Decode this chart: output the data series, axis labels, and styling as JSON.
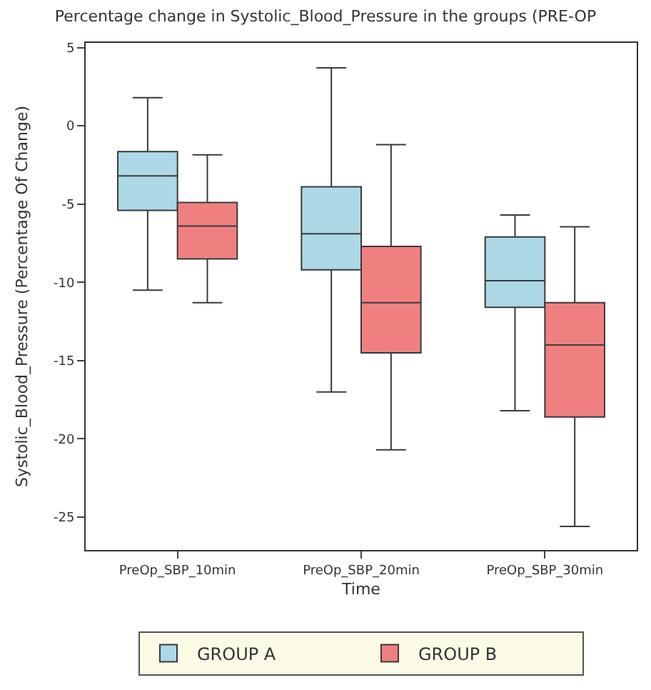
{
  "chart_data": {
    "type": "box",
    "title": "Percentage change in Systolic_Blood_Pressure in the groups (PRE-OP",
    "xlabel": "Time",
    "ylabel": "Systolic_Blood_Pressure (Percentage Of Change)",
    "categories": [
      "PreOp_SBP_10min",
      "PreOp_SBP_20min",
      "PreOp_SBP_30min"
    ],
    "series": [
      {
        "name": "GROUP A",
        "color": "#add8e6",
        "boxes": [
          {
            "low": -10.5,
            "q1": -5.4,
            "median": -3.2,
            "q3": -1.65,
            "high": 1.8
          },
          {
            "low": -17.0,
            "q1": -9.2,
            "median": -6.9,
            "q3": -3.9,
            "high": 3.7
          },
          {
            "low": -18.2,
            "q1": -11.6,
            "median": -9.9,
            "q3": -7.1,
            "high": -5.7
          }
        ]
      },
      {
        "name": "GROUP B",
        "color": "#f08080",
        "boxes": [
          {
            "low": -11.3,
            "q1": -8.5,
            "median": -6.4,
            "q3": -4.9,
            "high": -1.85
          },
          {
            "low": -20.7,
            "q1": -14.5,
            "median": -11.3,
            "q3": -7.7,
            "high": -1.2
          },
          {
            "low": -25.6,
            "q1": -18.6,
            "median": -14.0,
            "q3": -11.3,
            "high": -6.45
          }
        ]
      }
    ],
    "ylim": [
      -27.1,
      5.3
    ],
    "yticks": [
      5,
      0,
      -5,
      -10,
      -15,
      -20,
      -25
    ],
    "legend": "bottom"
  }
}
